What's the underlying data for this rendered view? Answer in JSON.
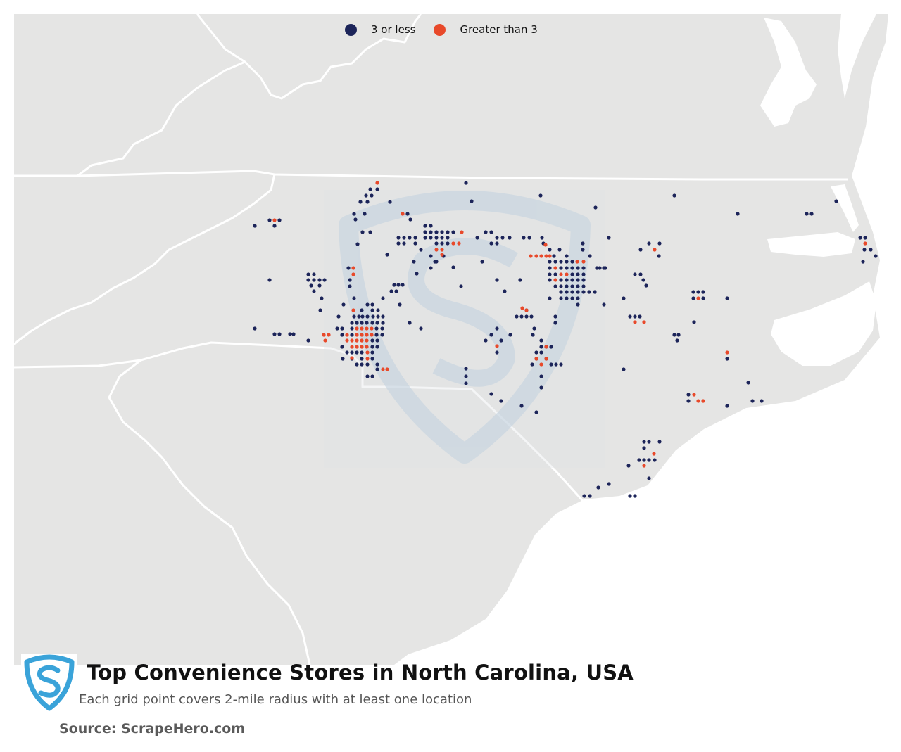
{
  "legend": {
    "low": {
      "label": "3 or less",
      "color": "#1c2459"
    },
    "high": {
      "label": "Greater than 3",
      "color": "#e8492a"
    }
  },
  "colors": {
    "land": "#e5e5e4",
    "ocean": "#ffffff",
    "borders": "#ffffff",
    "watermark": "#c4d3e0"
  },
  "footer": {
    "title": "Top Convenience Stores in North Carolina, USA",
    "subtitle": "Each grid point covers 2-mile radius with at least one location",
    "source": "Source: ScrapeHero.com"
  },
  "icons": {
    "logo": "scrapehero-shield-logo-icon"
  }
}
